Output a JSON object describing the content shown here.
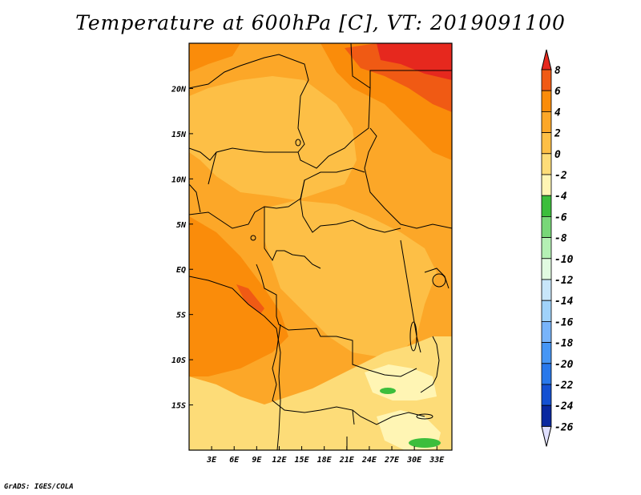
{
  "title": "Temperature at 600hPa [C], VT: 2019091100",
  "footer": "GrADS: IGES/COLA",
  "map": {
    "lon_range": [
      0,
      35
    ],
    "lat_range": [
      -20,
      25
    ],
    "lat_ticks": [
      {
        "lat": 20,
        "label": "20N"
      },
      {
        "lat": 15,
        "label": "15N"
      },
      {
        "lat": 10,
        "label": "10N"
      },
      {
        "lat": 5,
        "label": "5N"
      },
      {
        "lat": 0,
        "label": "EQ"
      },
      {
        "lat": -5,
        "label": "5S"
      },
      {
        "lat": -10,
        "label": "10S"
      },
      {
        "lat": -15,
        "label": "15S"
      }
    ],
    "lon_ticks": [
      {
        "lon": 3,
        "label": "3E"
      },
      {
        "lon": 6,
        "label": "6E"
      },
      {
        "lon": 9,
        "label": "9E"
      },
      {
        "lon": 12,
        "label": "12E"
      },
      {
        "lon": 15,
        "label": "15E"
      },
      {
        "lon": 18,
        "label": "18E"
      },
      {
        "lon": 21,
        "label": "21E"
      },
      {
        "lon": 24,
        "label": "24E"
      },
      {
        "lon": 27,
        "label": "27E"
      },
      {
        "lon": 30,
        "label": "30E"
      },
      {
        "lon": 33,
        "label": "33E"
      }
    ]
  },
  "colorbar": {
    "labels": [
      "8",
      "6",
      "4",
      "2",
      "0",
      "-2",
      "-4",
      "-6",
      "-8",
      "-10",
      "-12",
      "-14",
      "-16",
      "-18",
      "-20",
      "-22",
      "-24",
      "-26"
    ],
    "colors": [
      "#e6281e",
      "#f05a14",
      "#fa8c0a",
      "#fca728",
      "#fdbf46",
      "#fddc78",
      "#fff5b4",
      "#3cbe3c",
      "#78d778",
      "#b4f0b4",
      "#e1fae1",
      "#c8e6fa",
      "#a0d2fa",
      "#78b4fa",
      "#4696f5",
      "#2878eb",
      "#1450d2",
      "#0a28a0",
      "#000064",
      "#e0e0ff"
    ]
  }
}
